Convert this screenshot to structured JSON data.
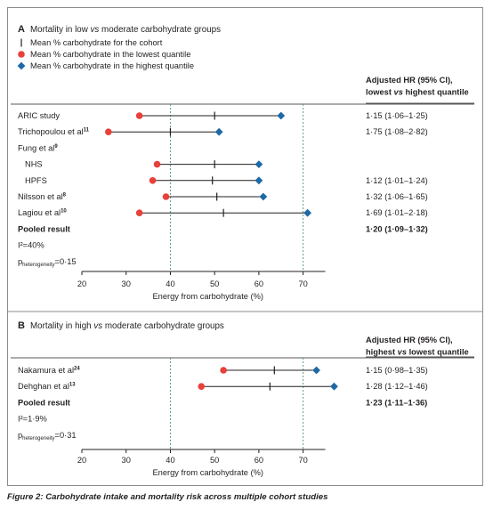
{
  "figure": {
    "caption_label": "Figure 2:",
    "caption_text": "Carbohydrate intake and mortality risk across multiple cohort studies"
  },
  "colors": {
    "low": "#e8403a",
    "high": "#1f6aa5",
    "dash": "#5a9a95",
    "line": "#231f20"
  },
  "chart_data": [
    {
      "type": "forest",
      "panel_letter": "A",
      "title_parts": [
        "Mortality in low ",
        "vs",
        " moderate carbohydrate groups"
      ],
      "legend": [
        {
          "marker": "tick",
          "label": "Mean % carbohydrate for the cohort"
        },
        {
          "marker": "circle",
          "label": "Mean % carbohydrate in the lowest quantile"
        },
        {
          "marker": "diamond",
          "label": "Mean % carbohydrate in the highest quantile"
        }
      ],
      "hr_header_line1": "Adjusted HR (95% CI),",
      "hr_header_line2": "lowest vs highest quantile",
      "xlabel": "Energy from carbohydrate (%)",
      "xlim": [
        20,
        75
      ],
      "xticks": [
        20,
        30,
        40,
        50,
        60,
        70
      ],
      "ref_lines": [
        40,
        70
      ],
      "rows": [
        {
          "label": "ARIC study",
          "low": 33,
          "mean": 50,
          "high": 65,
          "hr": "1·15 (1·06–1·25)"
        },
        {
          "label": "Trichopoulou et al",
          "sup": "11",
          "low": 26,
          "mean": 40,
          "high": 51,
          "hr": "1·75 (1·08–2·82)"
        },
        {
          "label": "Fung et al",
          "sup": "9"
        },
        {
          "label": "NHS",
          "indent": true,
          "low": 37,
          "mean": 50,
          "high": 60,
          "hr": ""
        },
        {
          "label": "HPFS",
          "indent": true,
          "low": 36,
          "mean": 49.5,
          "high": 60,
          "hr": "1·12 (1·01–1·24)"
        },
        {
          "label": "Nilsson et al",
          "sup": "8",
          "low": 39,
          "mean": 50.5,
          "high": 61,
          "hr": "1·32 (1·06–1·65)"
        },
        {
          "label": "Lagiou et al",
          "sup": "10",
          "low": 33,
          "mean": 52,
          "high": 71,
          "hr": "1·69 (1·01–2·18)"
        },
        {
          "label": "Pooled result",
          "bold": true,
          "hr": "1·20 (1·09–1·32)",
          "hr_bold": true
        },
        {
          "label": "I²=40%"
        },
        {
          "label": "p",
          "sub": "heterogeneity",
          "suffix": "=0·15"
        }
      ]
    },
    {
      "type": "forest",
      "panel_letter": "B",
      "title_parts": [
        "Mortality in high ",
        "vs",
        " moderate carbohydrate groups"
      ],
      "legend": [],
      "hr_header_line1": "Adjusted HR (95% CI),",
      "hr_header_line2": "highest vs lowest quantile",
      "xlabel": "Energy from carbohydrate (%)",
      "xlim": [
        20,
        75
      ],
      "xticks": [
        20,
        30,
        40,
        50,
        60,
        70
      ],
      "ref_lines": [
        40,
        70
      ],
      "rows": [
        {
          "label": "Nakamura et al",
          "sup": "24",
          "low": 52,
          "mean": 63.5,
          "high": 73,
          "hr": "1·15 (0·98–1·35)"
        },
        {
          "label": "Dehghan et al",
          "sup": "13",
          "low": 47,
          "mean": 62.5,
          "high": 77,
          "hr": "1·28 (1·12–1·46)"
        },
        {
          "label": "Pooled result",
          "bold": true,
          "hr": "1·23 (1·11–1·36)",
          "hr_bold": true
        },
        {
          "label": "I²=1·9%"
        },
        {
          "label": "p",
          "sub": "heterogeneity",
          "suffix": "=0·31"
        }
      ]
    }
  ]
}
